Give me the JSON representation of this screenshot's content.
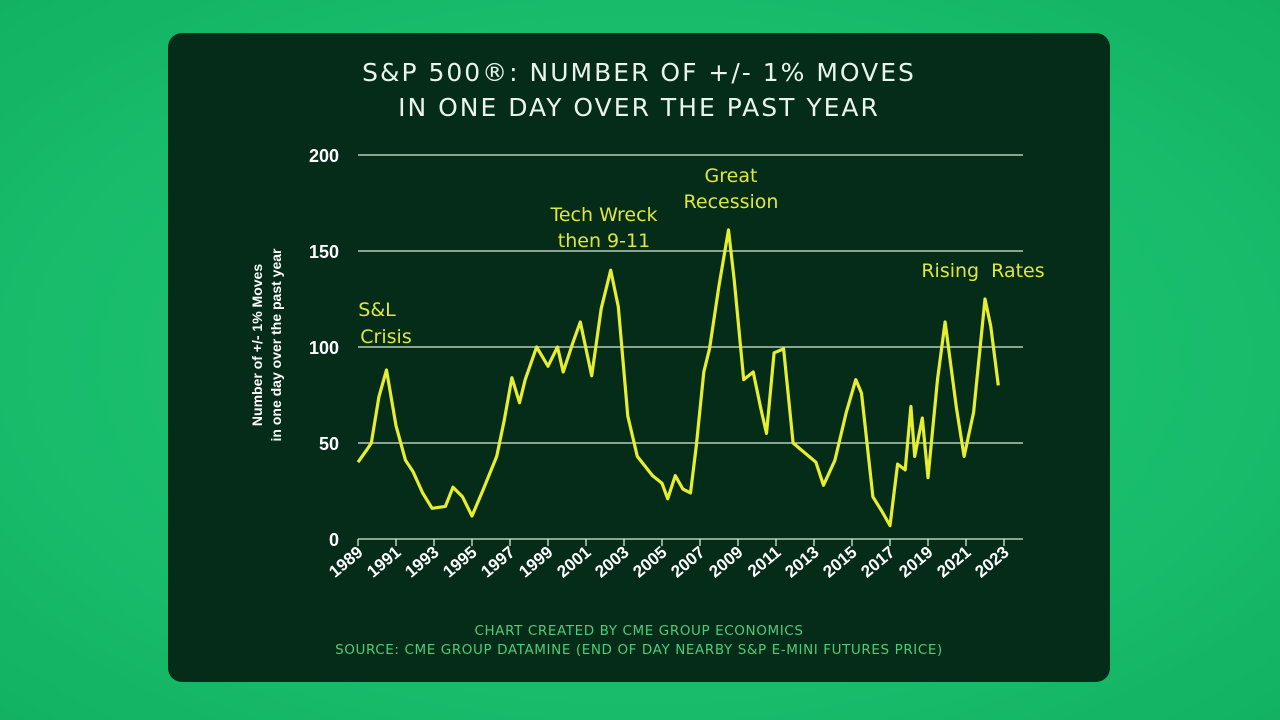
{
  "chart_data": {
    "type": "line",
    "title": "S&P 500®: NUMBER OF +/- 1% MOVES",
    "subtitle": "IN ONE DAY OVER THE PAST YEAR",
    "ylabel_lines": [
      "Number of +/- 1% Moves",
      "in one day over the past year"
    ],
    "xlabel": "",
    "ylim": [
      0,
      200
    ],
    "xlim": [
      1989,
      2023
    ],
    "yticks": [
      "0",
      "50",
      "100",
      "150",
      "200"
    ],
    "xticks": [
      "1989",
      "1991",
      "1993",
      "1995",
      "1997",
      "1999",
      "2001",
      "2003",
      "2005",
      "2007",
      "2009",
      "2011",
      "2013",
      "2015",
      "2017",
      "2019",
      "2021",
      "2023"
    ],
    "grid": "horizontal",
    "line_color": "#e6ee30",
    "x": [
      1989.0,
      1989.5,
      1989.7,
      1990.1,
      1990.5,
      1991.0,
      1991.5,
      1991.9,
      1992.4,
      1992.9,
      1993.6,
      1994.0,
      1994.5,
      1995.0,
      1995.6,
      1996.3,
      1996.7,
      1997.1,
      1997.5,
      1997.8,
      1998.4,
      1999.0,
      1999.5,
      1999.8,
      2000.3,
      2000.7,
      2001.3,
      2001.8,
      2002.3,
      2002.7,
      2003.2,
      2003.7,
      2004.5,
      2005.0,
      2005.3,
      2005.7,
      2006.1,
      2006.5,
      2006.8,
      2007.2,
      2007.5,
      2008.0,
      2008.5,
      2008.8,
      2009.3,
      2009.8,
      2010.2,
      2010.5,
      2010.9,
      2011.4,
      2011.9,
      2012.5,
      2013.1,
      2013.5,
      2014.1,
      2014.7,
      2015.2,
      2015.5,
      2016.1,
      2016.6,
      2017.0,
      2017.4,
      2017.8,
      2018.1,
      2018.3,
      2018.7,
      2019.0,
      2019.5,
      2019.9,
      2020.5,
      2020.9,
      2021.4,
      2022.0,
      2022.3,
      2022.7
    ],
    "y": [
      40,
      47,
      50,
      74,
      88,
      59,
      41,
      35,
      24,
      16,
      17,
      27,
      22,
      12,
      26,
      43,
      62,
      84,
      71,
      83,
      100,
      90,
      100,
      87,
      102,
      113,
      85,
      120,
      140,
      121,
      64,
      43,
      33,
      29,
      21,
      33,
      26,
      24,
      48,
      87,
      99,
      132,
      161,
      135,
      83,
      87,
      68,
      55,
      97,
      99,
      50,
      45,
      40,
      28,
      41,
      66,
      83,
      76,
      22,
      14,
      7,
      39,
      36,
      69,
      43,
      63,
      32,
      83,
      113,
      68,
      43,
      66,
      125,
      111,
      80
    ],
    "annotations": [
      {
        "lines": [
          "S&L",
          "Crisis"
        ]
      },
      {
        "lines": [
          "Tech Wreck",
          "then 9-11"
        ]
      },
      {
        "lines": [
          "Great",
          "Recession"
        ]
      },
      {
        "lines": [
          "Rising  Rates"
        ]
      }
    ],
    "footer": [
      "CHART CREATED BY CME GROUP ECONOMICS",
      "SOURCE: CME GROUP DATAMINE (END OF DAY NEARBY S&P E-MINI FUTURES PRICE)"
    ]
  },
  "colors": {
    "background": "#17bb6a",
    "panel": "#052b19",
    "annotation": "#dfe83a",
    "footer": "#4fcc78"
  }
}
